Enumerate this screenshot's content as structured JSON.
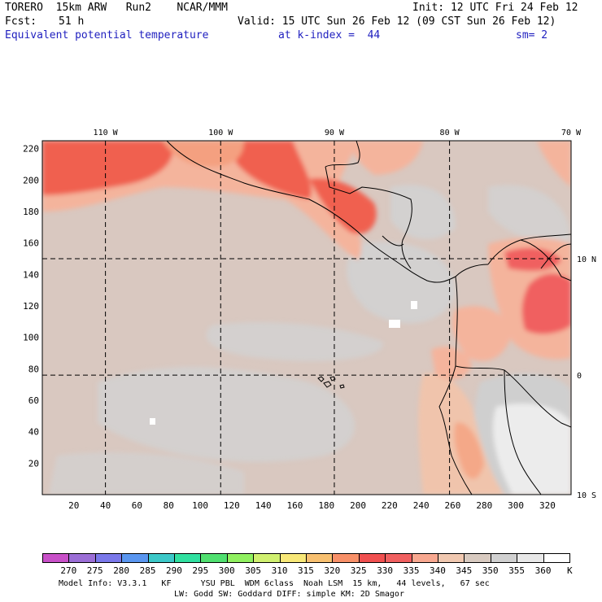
{
  "header": {
    "model": "TORERO  15km ARW   Run2    NCAR/MMM",
    "init": "Init: 12 UTC Fri 24 Feb 12",
    "fcst_label": "Fcst:",
    "fcst_value": "51 h",
    "valid": "Valid: 15 UTC Sun 26 Feb 12 (09 CST Sun 26 Feb 12)",
    "field": "Equivalent potential temperature",
    "level": "at k-index =  44",
    "smooth": "sm= 2"
  },
  "map": {
    "lon_labels": [
      "110 W",
      "100 W",
      "90 W",
      "80 W",
      "70 W"
    ],
    "lat_labels": [
      "10 N",
      "0",
      "10 S"
    ],
    "y_ticks": [
      "220",
      "200",
      "180",
      "160",
      "140",
      "120",
      "100",
      "80",
      "60",
      "40",
      "20"
    ],
    "x_ticks": [
      "20",
      "40",
      "60",
      "80",
      "100",
      "120",
      "140",
      "160",
      "180",
      "200",
      "220",
      "240",
      "260",
      "280",
      "300",
      "320"
    ],
    "grid_x_values": [
      40,
      113,
      185,
      258
    ],
    "grid_y_values": [
      150,
      76
    ]
  },
  "colorbar": {
    "labels": [
      "270",
      "275",
      "280",
      "285",
      "290",
      "295",
      "300",
      "305",
      "310",
      "315",
      "320",
      "325",
      "330",
      "335",
      "340",
      "345",
      "350",
      "355",
      "360"
    ],
    "unit": "K",
    "colors": [
      "#c850c8",
      "#9b6ed6",
      "#7a78ea",
      "#5a96f0",
      "#3cc8c8",
      "#30e0a0",
      "#50e070",
      "#90f060",
      "#d0f070",
      "#f8e878",
      "#f8c070",
      "#f89068",
      "#f05050",
      "#f06060",
      "#f8a890",
      "#f0c8b0",
      "#d8cac0",
      "#d0d0d0",
      "#e8e8e8",
      "#ffffff"
    ]
  },
  "footer": {
    "line1": "Model Info: V3.3.1   KF      YSU PBL  WDM 6class  Noah LSM  15 km,   44 levels,   67 sec",
    "line2": "LW: Godd SW: Goddard DIFF: simple KM: 2D Smagor"
  }
}
